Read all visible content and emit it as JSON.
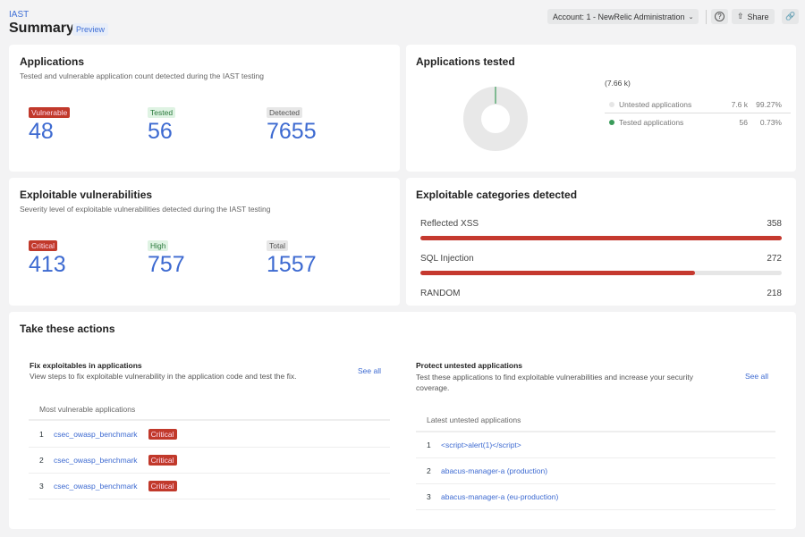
{
  "header": {
    "breadcrumb": "IAST",
    "title": "Summary",
    "badge": "Preview",
    "account": "Account: 1 - NewRelic Administration",
    "share": "Share"
  },
  "applications": {
    "title": "Applications",
    "subtitle": "Tested and vulnerable application count detected during the IAST testing",
    "stats": [
      {
        "label": "Vulnerable",
        "value": "48"
      },
      {
        "label": "Tested",
        "value": "56"
      },
      {
        "label": "Detected",
        "value": "7655"
      }
    ]
  },
  "tested": {
    "title": "Applications tested",
    "total": "(7.66 k)",
    "rows": [
      {
        "label": "Untested applications",
        "value": "7.6 k",
        "pct": "99.27%",
        "color": "#e6e6e6"
      },
      {
        "label": "Tested applications",
        "value": "56",
        "pct": "0.73%",
        "color": "#3a9b5a"
      }
    ]
  },
  "exploitable": {
    "title": "Exploitable vulnerabilities",
    "subtitle": "Severity level of exploitable vulnerabilities detected during the IAST testing",
    "stats": [
      {
        "label": "Critical",
        "value": "413"
      },
      {
        "label": "High",
        "value": "757"
      },
      {
        "label": "Total",
        "value": "1557"
      }
    ]
  },
  "categories": {
    "title": "Exploitable categories detected",
    "items": [
      {
        "label": "Reflected XSS",
        "value": "358",
        "fraction": 1.0
      },
      {
        "label": "SQL Injection",
        "value": "272",
        "fraction": 0.76
      },
      {
        "label": "RANDOM",
        "value": "218",
        "fraction": 0.61
      }
    ]
  },
  "actions": {
    "title": "Take these actions",
    "fix": {
      "title": "Fix exploitables in applications",
      "desc": "View steps to fix exploitable vulnerability in the application code and test the fix.",
      "see_all": "See all",
      "header": "Most vulnerable applications",
      "rows": [
        {
          "n": "1",
          "name": "csec_owasp_benchmark",
          "sev": "Critical"
        },
        {
          "n": "2",
          "name": "csec_owasp_benchmark",
          "sev": "Critical"
        },
        {
          "n": "3",
          "name": "csec_owasp_benchmark",
          "sev": "Critical"
        }
      ]
    },
    "protect": {
      "title": "Protect untested applications",
      "desc": "Test these applications to find exploitable vulnerabilities and increase your security coverage.",
      "see_all": "See all",
      "header": "Latest untested applications",
      "rows": [
        {
          "n": "1",
          "name": "<script>alert(1)</script>"
        },
        {
          "n": "2",
          "name": "abacus-manager-a (production)"
        },
        {
          "n": "3",
          "name": "abacus-manager-a (eu-production)"
        }
      ]
    }
  }
}
